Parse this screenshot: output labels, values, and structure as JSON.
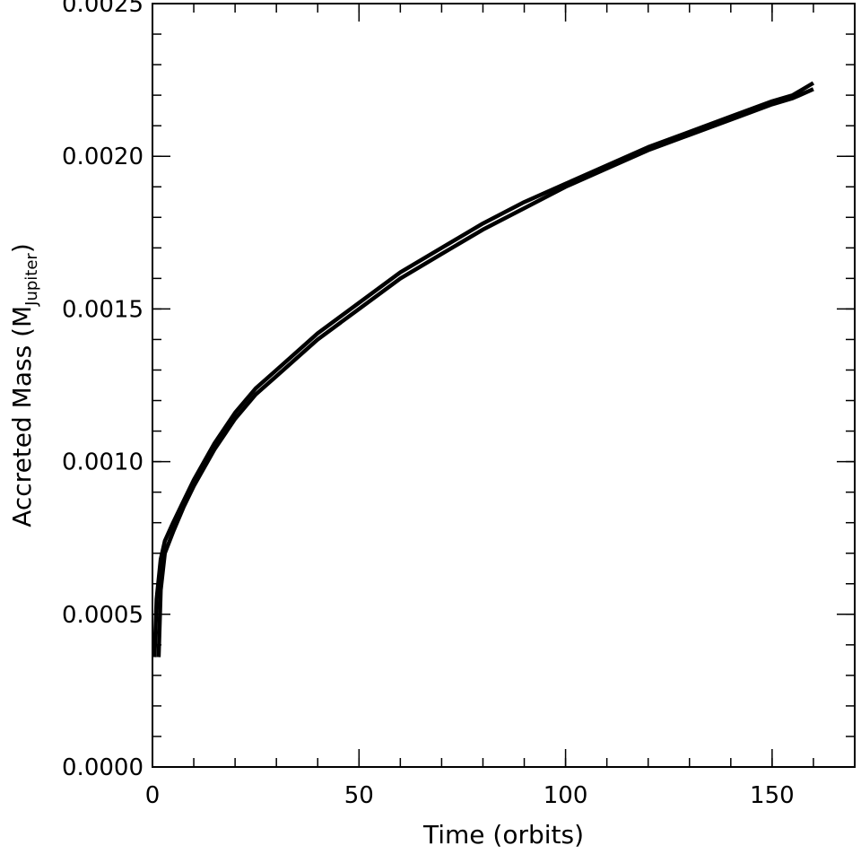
{
  "chart_data": {
    "type": "line",
    "title": "",
    "xlabel": "Time (orbits)",
    "ylabel": {
      "prefix": "Accreted Mass (M",
      "subscript": "Jupiter",
      "suffix": ")"
    },
    "xlim": [
      0,
      170
    ],
    "ylim": [
      0.0,
      0.0025
    ],
    "x_ticks": [
      0,
      50,
      100,
      150
    ],
    "x_tick_labels": [
      "0",
      "50",
      "100",
      "150"
    ],
    "x_minor_step": 10,
    "y_ticks": [
      0.0,
      0.0005,
      0.001,
      0.0015,
      0.002,
      0.0025
    ],
    "y_tick_labels": [
      "0.0000",
      "0.0005",
      "0.0010",
      "0.0015",
      "0.0020",
      "0.0025"
    ],
    "y_minor_step": 0.0001,
    "grid": false,
    "legend": "none",
    "colors": {
      "line": "#000000",
      "axes": "#000000",
      "background": "#ffffff"
    },
    "series": [
      {
        "x": [
          0.5,
          1,
          2,
          3,
          5,
          7.5,
          10,
          15,
          20,
          25,
          30,
          40,
          50,
          60,
          70,
          80,
          90,
          100,
          110,
          120,
          130,
          140,
          150,
          155,
          160
        ],
        "y": [
          0.00036,
          0.00055,
          0.00068,
          0.00074,
          0.0008,
          0.00087,
          0.00094,
          0.00106,
          0.00116,
          0.00124,
          0.0013,
          0.00142,
          0.00152,
          0.00162,
          0.0017,
          0.00178,
          0.00185,
          0.00191,
          0.00197,
          0.00203,
          0.00208,
          0.00213,
          0.00218,
          0.0022,
          0.00224
        ]
      },
      {
        "x": [
          1.5,
          2,
          3,
          5,
          7.5,
          10,
          15,
          20,
          25,
          30,
          40,
          50,
          60,
          70,
          80,
          90,
          100,
          110,
          120,
          130,
          140,
          150,
          155,
          160
        ],
        "y": [
          0.00036,
          0.00058,
          0.0007,
          0.00077,
          0.00085,
          0.00092,
          0.00104,
          0.00114,
          0.00122,
          0.00128,
          0.0014,
          0.0015,
          0.0016,
          0.00168,
          0.00176,
          0.00183,
          0.0019,
          0.00196,
          0.00202,
          0.00207,
          0.00212,
          0.00217,
          0.00219,
          0.00222
        ]
      }
    ]
  }
}
